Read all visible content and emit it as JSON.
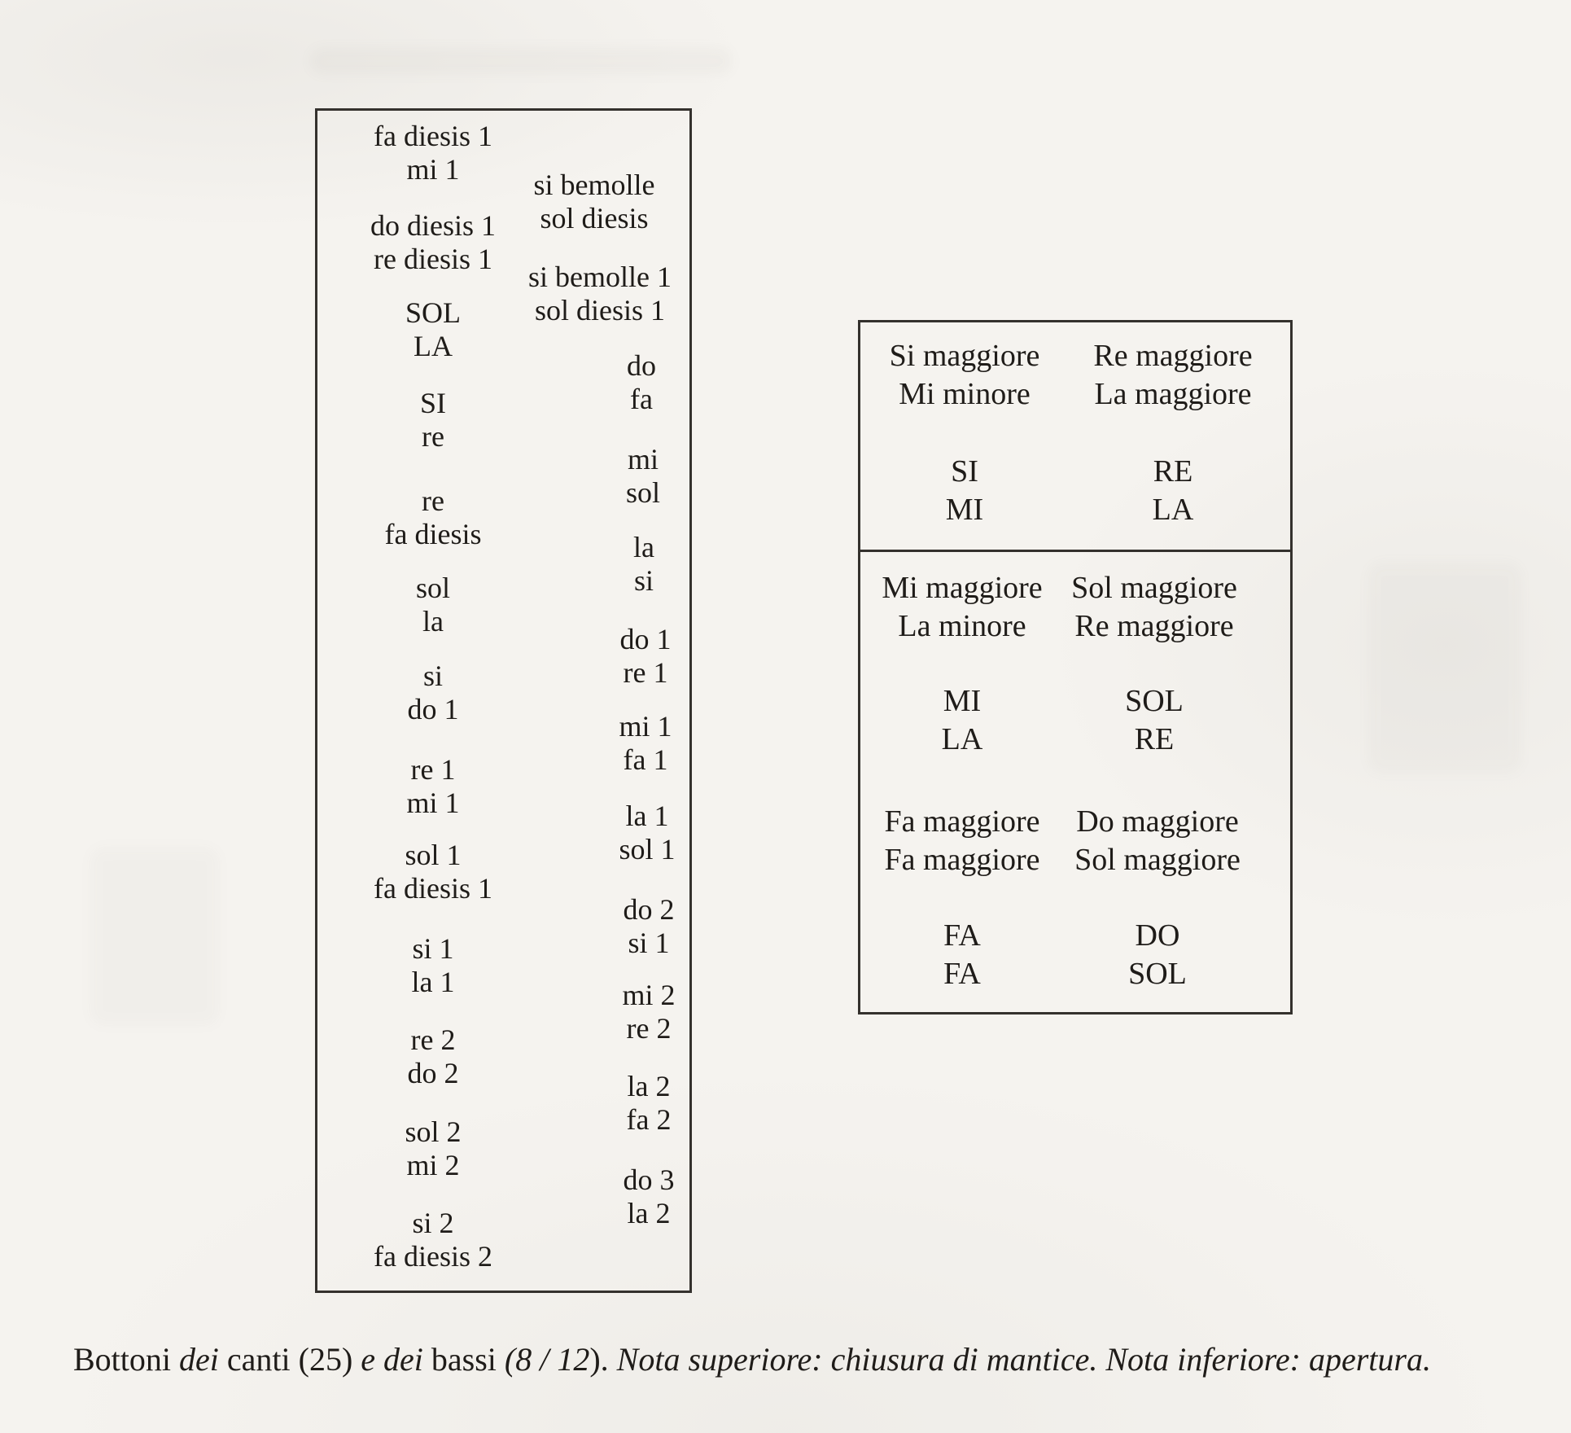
{
  "paper": {
    "background": "#f5f3ef",
    "ink": "#1f1c19",
    "border_color": "#34312d"
  },
  "left_box": {
    "col1": [
      {
        "top": "fa diesis 1",
        "bottom": "mi 1"
      },
      {
        "top": "do diesis 1",
        "bottom": "re diesis 1"
      },
      {
        "top": "SOL",
        "bottom": "LA"
      },
      {
        "top": "SI",
        "bottom": "re"
      },
      {
        "top": "re",
        "bottom": "fa diesis"
      },
      {
        "top": "sol",
        "bottom": "la"
      },
      {
        "top": "si",
        "bottom": "do 1"
      },
      {
        "top": "re 1",
        "bottom": "mi 1"
      },
      {
        "top": "sol 1",
        "bottom": "fa diesis 1"
      },
      {
        "top": "si 1",
        "bottom": "la 1"
      },
      {
        "top": "re 2",
        "bottom": "do 2"
      },
      {
        "top": "sol 2",
        "bottom": "mi 2"
      },
      {
        "top": "si 2",
        "bottom": "fa diesis 2"
      }
    ],
    "col2": [
      {
        "top": "si bemolle",
        "bottom": "sol diesis"
      },
      {
        "top": "si bemolle 1",
        "bottom": "sol diesis 1"
      },
      {
        "top": "do",
        "bottom": "fa"
      },
      {
        "top": "mi",
        "bottom": "sol"
      },
      {
        "top": "la",
        "bottom": "si"
      },
      {
        "top": "do 1",
        "bottom": "re 1"
      },
      {
        "top": "mi 1",
        "bottom": "fa 1"
      },
      {
        "top": "la 1",
        "bottom": "sol 1"
      },
      {
        "top": "do 2",
        "bottom": "si 1"
      },
      {
        "top": "mi 2",
        "bottom": "re 2"
      },
      {
        "top": "la 2",
        "bottom": "fa 2"
      },
      {
        "top": "do 3",
        "bottom": "la 2"
      }
    ]
  },
  "right_box": {
    "sections": [
      {
        "left": [
          {
            "top": "Si maggiore",
            "bottom": "Mi minore"
          },
          {
            "top": "SI",
            "bottom": "MI"
          }
        ],
        "right": [
          {
            "top": "Re maggiore",
            "bottom": "La maggiore"
          },
          {
            "top": "RE",
            "bottom": "LA"
          }
        ]
      },
      {
        "left": [
          {
            "top": "Mi maggiore",
            "bottom": "La minore"
          },
          {
            "top": "MI",
            "bottom": "LA"
          }
        ],
        "right": [
          {
            "top": "Sol maggiore",
            "bottom": "Re maggiore"
          },
          {
            "top": "SOL",
            "bottom": "RE"
          }
        ]
      },
      {
        "left": [
          {
            "top": "Fa maggiore",
            "bottom": "Fa maggiore"
          },
          {
            "top": "FA",
            "bottom": "FA"
          }
        ],
        "right": [
          {
            "top": "Do maggiore",
            "bottom": "Sol maggiore"
          },
          {
            "top": "DO",
            "bottom": "SOL"
          }
        ]
      }
    ]
  },
  "caption": {
    "segments": [
      {
        "text": "Bottoni ",
        "italic": false
      },
      {
        "text": "dei ",
        "italic": true
      },
      {
        "text": "canti (25) ",
        "italic": false
      },
      {
        "text": "e dei ",
        "italic": true
      },
      {
        "text": "bassi ",
        "italic": false
      },
      {
        "text": "(8 / 12",
        "italic": true
      },
      {
        "text": "). ",
        "italic": false
      },
      {
        "text": "Nota superiore: chiusura di mantice. Nota inferiore: apertura.",
        "italic": true
      }
    ]
  }
}
